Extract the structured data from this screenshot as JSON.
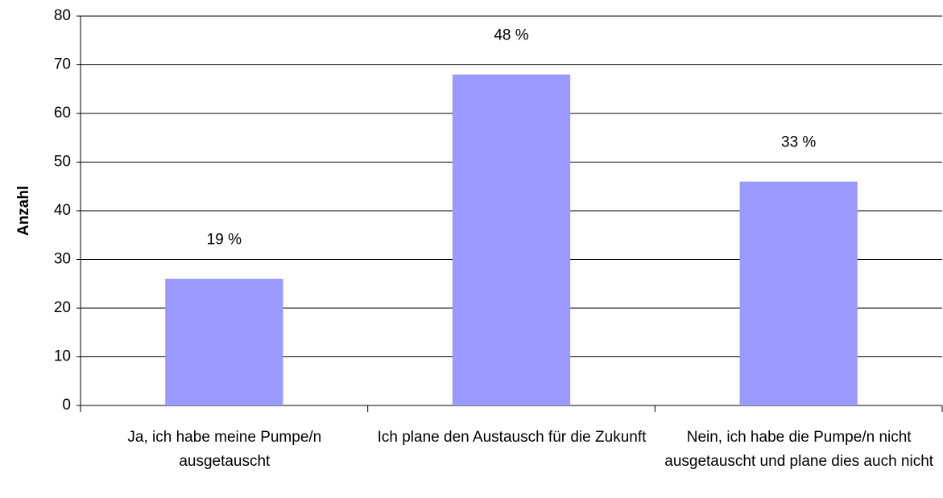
{
  "chart_data": {
    "type": "bar",
    "ylabel": "Anzahl",
    "categories": [
      "Ja, ich habe meine Pumpe/n ausgetauscht",
      "Ich plane den Austausch für die Zukunft",
      "Nein, ich habe die Pumpe/n nicht ausgetauscht und plane dies auch nicht"
    ],
    "values": [
      26,
      68,
      46
    ],
    "annotations": [
      "19 %",
      "48 %",
      "33 %"
    ],
    "color": "#9999ff",
    "ylim": [
      0,
      80
    ],
    "yticks": [
      0,
      10,
      20,
      30,
      40,
      50,
      60,
      70,
      80
    ],
    "grid": true
  }
}
